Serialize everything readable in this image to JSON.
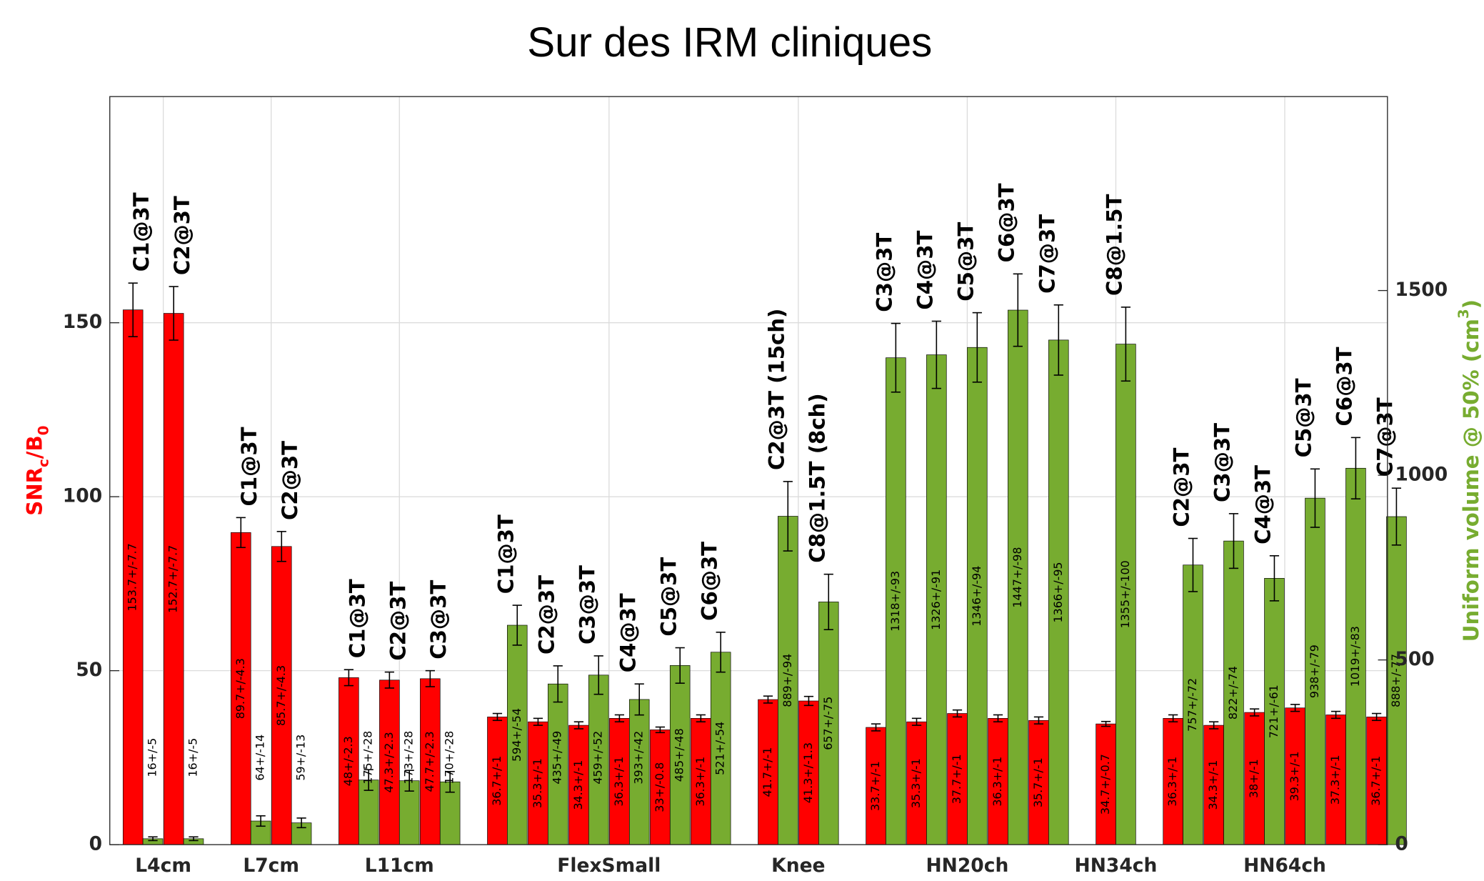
{
  "chart_data": {
    "type": "grouped-bar",
    "title": "Sur des IRM cliniques",
    "ylabel": [
      {
        "text": "SNR"
      },
      {
        "text": "c",
        "sub": true
      },
      {
        "text": "/B"
      },
      {
        "text": "0",
        "sub": true
      }
    ],
    "y2label": [
      {
        "text": "Uniform volume  @ 50% (cm"
      },
      {
        "text": "3",
        "sup": true
      },
      {
        "text": ")"
      }
    ],
    "snr_color": "#ff0000",
    "volume_color": "#77ac30",
    "ylim": [
      0,
      215
    ],
    "yticks": [
      0,
      50,
      100,
      150
    ],
    "y2lim": [
      0,
      2025
    ],
    "y2ticks": [
      0,
      500,
      1000,
      1500
    ],
    "grid": true,
    "groups": [
      {
        "name": "L4cm",
        "bars": [
          {
            "label": "C1@3T",
            "snr": 153.7,
            "snr_error": 7.7,
            "snr_label": "153.7+/-7.7",
            "volume": 16,
            "volume_error": 5,
            "volume_label": "16+/-5"
          },
          {
            "label": "C2@3T",
            "snr": 152.7,
            "snr_error": 7.7,
            "snr_label": "152.7+/-7.7",
            "volume": 16,
            "volume_error": 5,
            "volume_label": "16+/-5"
          }
        ]
      },
      {
        "name": "L7cm",
        "bars": [
          {
            "label": "C1@3T",
            "snr": 89.7,
            "snr_error": 4.3,
            "snr_label": "89.7+/-4.3",
            "volume": 64,
            "volume_error": 14,
            "volume_label": "64+/-14"
          },
          {
            "label": "C2@3T",
            "snr": 85.7,
            "snr_error": 4.3,
            "snr_label": "85.7+/-4.3",
            "volume": 59,
            "volume_error": 13,
            "volume_label": "59+/-13"
          }
        ]
      },
      {
        "name": "L11cm",
        "bars": [
          {
            "label": "C1@3T",
            "snr": 48,
            "snr_error": 2.3,
            "snr_label": "48+/-2.3",
            "volume": 175,
            "volume_error": 28,
            "volume_label": "175+/-28"
          },
          {
            "label": "C2@3T",
            "snr": 47.3,
            "snr_error": 2.3,
            "snr_label": "47.3+/-2.3",
            "volume": 173,
            "volume_error": 28,
            "volume_label": "173+/-28"
          },
          {
            "label": "C3@3T",
            "snr": 47.7,
            "snr_error": 2.3,
            "snr_label": "47.7+/-2.3",
            "volume": 170,
            "volume_error": 28,
            "volume_label": "170+/-28"
          }
        ]
      },
      {
        "name": "FlexSmall",
        "bars": [
          {
            "label": "C1@3T",
            "snr": 36.7,
            "snr_error": 1,
            "snr_label": "36.7+/-1",
            "volume": 594,
            "volume_error": 54,
            "volume_label": "594+/-54"
          },
          {
            "label": "C2@3T",
            "snr": 35.3,
            "snr_error": 1,
            "snr_label": "35.3+/-1",
            "volume": 435,
            "volume_error": 49,
            "volume_label": "435+/-49"
          },
          {
            "label": "C3@3T",
            "snr": 34.3,
            "snr_error": 1,
            "snr_label": "34.3+/-1",
            "volume": 459,
            "volume_error": 52,
            "volume_label": "459+/-52"
          },
          {
            "label": "C4@3T",
            "snr": 36.3,
            "snr_error": 1,
            "snr_label": "36.3+/-1",
            "volume": 393,
            "volume_error": 42,
            "volume_label": "393+/-42"
          },
          {
            "label": "C5@3T",
            "snr": 33,
            "snr_error": 0.8,
            "snr_label": "33+/-0.8",
            "volume": 485,
            "volume_error": 48,
            "volume_label": "485+/-48"
          },
          {
            "label": "C6@3T",
            "snr": 36.3,
            "snr_error": 1,
            "snr_label": "36.3+/-1",
            "volume": 521,
            "volume_error": 54,
            "volume_label": "521+/-54"
          }
        ]
      },
      {
        "name": "Knee",
        "bars": [
          {
            "label": "C2@3T (15ch)",
            "snr": 41.7,
            "snr_error": 1,
            "snr_label": "41.7+/-1",
            "volume": 889,
            "volume_error": 94,
            "volume_label": "889+/-94"
          },
          {
            "label": "C8@1.5T (8ch)",
            "snr": 41.3,
            "snr_error": 1.3,
            "snr_label": "41.3+/-1.3",
            "volume": 657,
            "volume_error": 75,
            "volume_label": "657+/-75"
          }
        ]
      },
      {
        "name": "HN20ch",
        "bars": [
          {
            "label": "C3@3T",
            "snr": 33.7,
            "snr_error": 1,
            "snr_label": "33.7+/-1",
            "volume": 1318,
            "volume_error": 93,
            "volume_label": "1318+/-93"
          },
          {
            "label": "C4@3T",
            "snr": 35.3,
            "snr_error": 1,
            "snr_label": "35.3+/-1",
            "volume": 1326,
            "volume_error": 91,
            "volume_label": "1326+/-91"
          },
          {
            "label": "C5@3T",
            "snr": 37.7,
            "snr_error": 1,
            "snr_label": "37.7+/-1",
            "volume": 1346,
            "volume_error": 94,
            "volume_label": "1346+/-94"
          },
          {
            "label": "C6@3T",
            "snr": 36.3,
            "snr_error": 1,
            "snr_label": "36.3+/-1",
            "volume": 1447,
            "volume_error": 98,
            "volume_label": "1447+/-98"
          },
          {
            "label": "C7@3T",
            "snr": 35.7,
            "snr_error": 1,
            "snr_label": "35.7+/-1",
            "volume": 1366,
            "volume_error": 95,
            "volume_label": "1366+/-95"
          }
        ]
      },
      {
        "name": "HN34ch",
        "bars": [
          {
            "label": "C8@1.5T",
            "snr": 34.7,
            "snr_error": 0.7,
            "snr_label": "34.7+/-0.7",
            "volume": 1355,
            "volume_error": 100,
            "volume_label": "1355+/-100"
          }
        ]
      },
      {
        "name": "HN64ch",
        "bars": [
          {
            "label": "C2@3T",
            "snr": 36.3,
            "snr_error": 1,
            "snr_label": "36.3+/-1",
            "volume": 757,
            "volume_error": 72,
            "volume_label": "757+/-72"
          },
          {
            "label": "C3@3T",
            "snr": 34.3,
            "snr_error": 1,
            "snr_label": "34.3+/-1",
            "volume": 822,
            "volume_error": 74,
            "volume_label": "822+/-74"
          },
          {
            "label": "C4@3T",
            "snr": 38,
            "snr_error": 1,
            "snr_label": "38+/-1",
            "volume": 721,
            "volume_error": 61,
            "volume_label": "721+/-61"
          },
          {
            "label": "C5@3T",
            "snr": 39.3,
            "snr_error": 1,
            "snr_label": "39.3+/-1",
            "volume": 938,
            "volume_error": 79,
            "volume_label": "938+/-79"
          },
          {
            "label": "C6@3T",
            "snr": 37.3,
            "snr_error": 1,
            "snr_label": "37.3+/-1",
            "volume": 1019,
            "volume_error": 83,
            "volume_label": "1019+/-83"
          },
          {
            "label": "C7@3T",
            "snr": 36.7,
            "snr_error": 1,
            "snr_label": "36.7+/-1",
            "volume": 888,
            "volume_error": 77,
            "volume_label": "888+/-77"
          }
        ]
      }
    ]
  }
}
